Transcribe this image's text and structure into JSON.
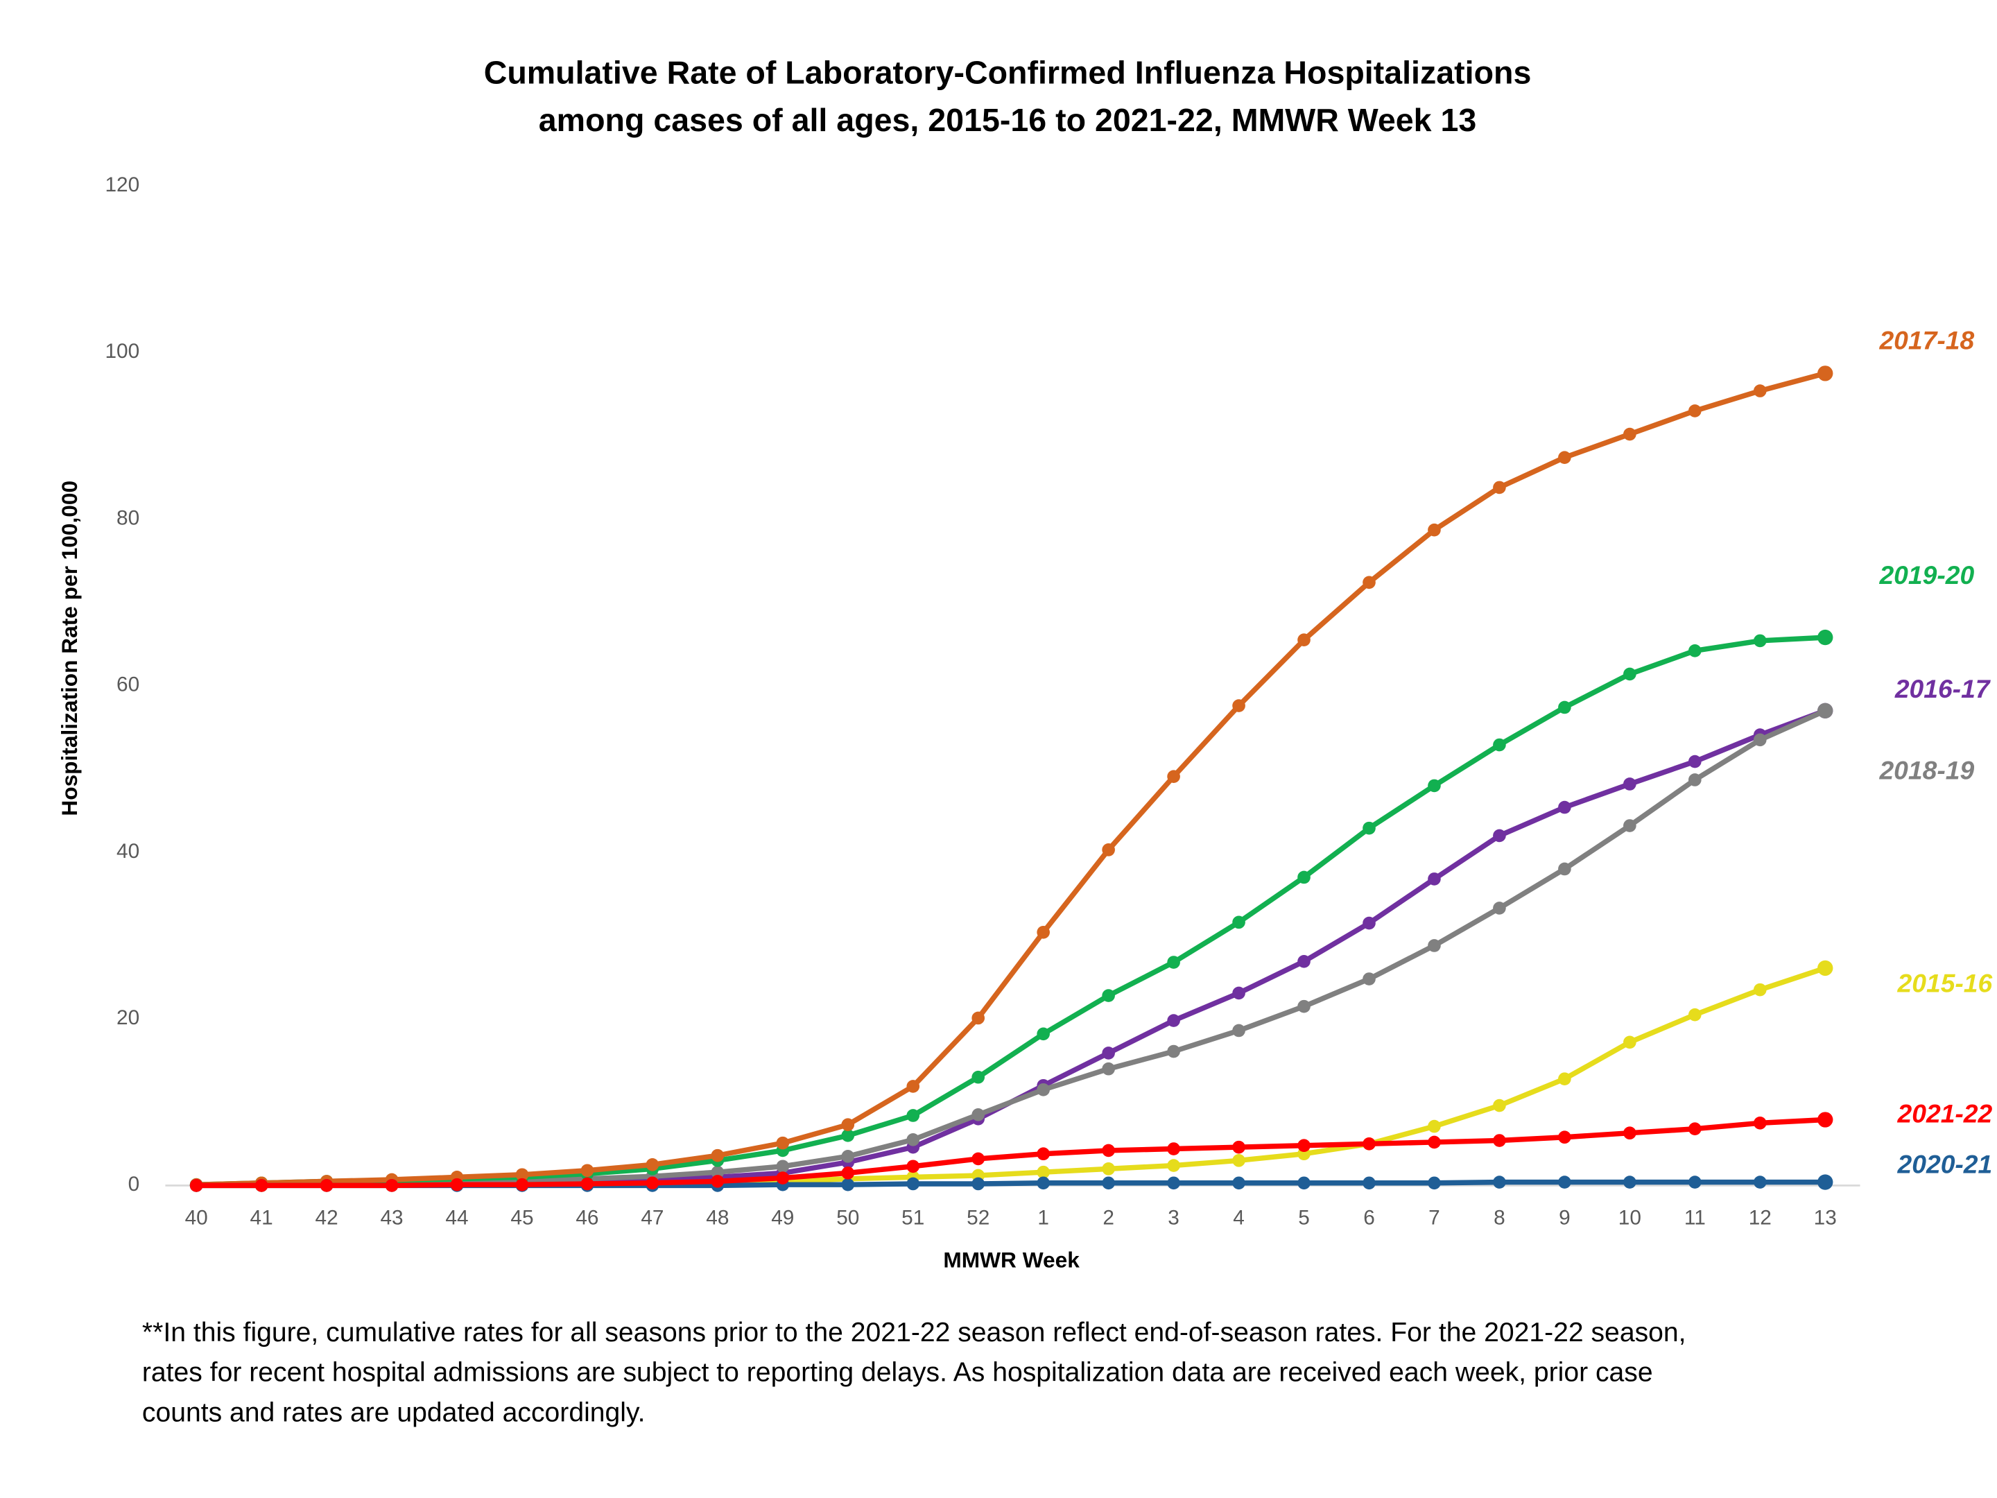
{
  "chart_data": {
    "type": "line",
    "title": [
      "Cumulative Rate of Laboratory-Confirmed Influenza Hospitalizations",
      "among cases of all ages, 2015-16 to 2021-22, MMWR  Week 13"
    ],
    "x_label": "MMWR Week",
    "y_label": "Hospitalization  Rate per 100,000",
    "categories": [
      "40",
      "41",
      "42",
      "43",
      "44",
      "45",
      "46",
      "47",
      "48",
      "49",
      "50",
      "51",
      "52",
      "1",
      "2",
      "3",
      "4",
      "5",
      "6",
      "7",
      "8",
      "9",
      "10",
      "11",
      "12",
      "13"
    ],
    "ylim": [
      0,
      120
    ],
    "yticks": [
      0,
      20,
      40,
      60,
      80,
      100,
      120
    ],
    "grid": false,
    "series": [
      {
        "name": "2015-16",
        "color": "#e6dc1c",
        "values": [
          0,
          0,
          0.1,
          0.1,
          0.1,
          0.1,
          0.2,
          0.2,
          0.3,
          0.5,
          0.8,
          1.0,
          1.2,
          1.6,
          2.0,
          2.4,
          3.0,
          3.8,
          5.0,
          7.1,
          9.6,
          12.8,
          17.2,
          20.5,
          23.5,
          26.1
        ]
      },
      {
        "name": "2016-17",
        "color": "#7030a0",
        "values": [
          0,
          0.1,
          0.1,
          0.2,
          0.3,
          0.4,
          0.5,
          0.7,
          1.0,
          1.5,
          2.8,
          4.6,
          8.0,
          12.0,
          15.9,
          19.8,
          23.1,
          26.9,
          31.5,
          36.8,
          42.0,
          45.4,
          48.2,
          50.9,
          54.1,
          57.0
        ]
      },
      {
        "name": "2018-19",
        "color": "#808080",
        "values": [
          0.1,
          0.2,
          0.3,
          0.4,
          0.5,
          0.6,
          0.8,
          1.1,
          1.6,
          2.3,
          3.5,
          5.5,
          8.5,
          11.5,
          14.0,
          16.1,
          18.6,
          21.5,
          24.8,
          28.8,
          33.3,
          38.0,
          43.2,
          48.7,
          53.5,
          57.0
        ]
      },
      {
        "name": "2019-20",
        "color": "#12b050",
        "values": [
          0.1,
          0.3,
          0.5,
          0.6,
          0.8,
          1.0,
          1.4,
          2.0,
          3.0,
          4.2,
          6.0,
          8.4,
          13.0,
          18.2,
          22.8,
          26.8,
          31.6,
          37.0,
          42.9,
          48.0,
          52.9,
          57.4,
          61.4,
          64.2,
          65.4,
          65.8
        ]
      },
      {
        "name": "2017-18",
        "color": "#d6651e",
        "values": [
          0.1,
          0.3,
          0.5,
          0.7,
          1.0,
          1.3,
          1.8,
          2.5,
          3.6,
          5.1,
          7.3,
          11.9,
          20.1,
          30.4,
          40.3,
          49.1,
          57.6,
          65.5,
          72.4,
          78.7,
          83.8,
          87.4,
          90.2,
          93.0,
          95.4,
          97.5
        ]
      },
      {
        "name": "2020-21",
        "color": "#1f5e96",
        "values": [
          0,
          0,
          0,
          0,
          0,
          0,
          0,
          0,
          0,
          0.1,
          0.1,
          0.2,
          0.2,
          0.3,
          0.3,
          0.3,
          0.3,
          0.3,
          0.3,
          0.3,
          0.4,
          0.4,
          0.4,
          0.4,
          0.4,
          0.4
        ]
      },
      {
        "name": "2021-22",
        "color": "#ff0000",
        "values": [
          0,
          0,
          0,
          0,
          0.1,
          0.1,
          0.2,
          0.3,
          0.5,
          0.9,
          1.5,
          2.3,
          3.2,
          3.8,
          4.2,
          4.4,
          4.6,
          4.8,
          5.0,
          5.2,
          5.4,
          5.8,
          6.3,
          6.8,
          7.5,
          7.9
        ]
      }
    ],
    "footnote": [
      "**In this figure, cumulative rates for all seasons prior to the 2021-22 season reflect end-of-season rates. For the 2021-22 season,",
      "rates for recent hospital admissions are subject to reporting delays. As hospitalization data are received each week, prior case",
      "counts and rates are updated accordingly."
    ]
  }
}
